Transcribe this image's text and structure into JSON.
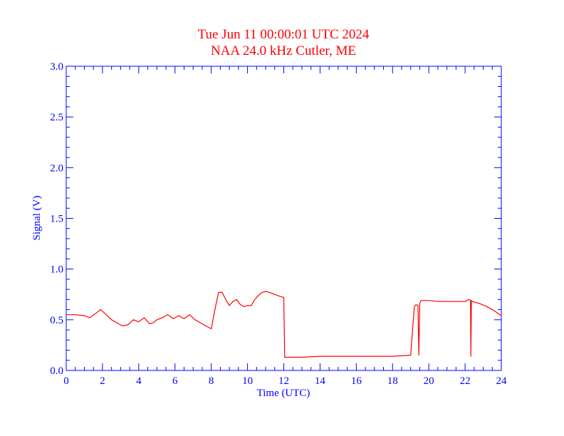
{
  "chart_data": {
    "type": "line",
    "title": "Tue Jun 11 00:00:01 UTC 2024",
    "subtitle": "NAA 24.0 kHz Cutler, ME",
    "xlabel": "Time (UTC)",
    "ylabel": "Signal (V)",
    "xlim": [
      0,
      24
    ],
    "ylim": [
      0,
      3.0
    ],
    "x_ticks": [
      "0",
      "2",
      "4",
      "6",
      "8",
      "10",
      "12",
      "14",
      "16",
      "18",
      "20",
      "22",
      "24"
    ],
    "y_ticks": [
      "0.0",
      "0.5",
      "1.0",
      "1.5",
      "2.0",
      "2.5",
      "3.0"
    ],
    "grid": false,
    "series": [
      {
        "x": [
          0,
          0.5,
          1.0,
          1.3,
          1.6,
          1.9,
          2.2,
          2.5,
          2.8,
          3.1,
          3.4,
          3.7,
          4.0,
          4.3,
          4.6,
          4.8,
          5.0,
          5.3,
          5.6,
          5.9,
          6.2,
          6.5,
          6.8,
          7.1,
          7.4,
          7.7,
          8.0,
          8.2,
          8.4,
          8.6,
          8.8,
          9.0,
          9.2,
          9.4,
          9.6,
          9.8,
          10.0,
          10.2,
          10.4,
          10.6,
          10.8,
          11.0,
          11.2,
          11.5,
          11.8,
          12.0,
          12.05,
          12.1,
          12.5,
          13.0,
          14.0,
          15.0,
          16.0,
          17.0,
          18.0,
          19.0,
          19.2,
          19.3,
          19.4,
          19.45,
          19.5,
          19.55,
          19.6,
          19.7,
          20.0,
          20.5,
          21.0,
          21.5,
          22.0,
          22.2,
          22.3,
          22.32,
          22.35,
          22.4,
          22.8,
          23.2,
          23.6,
          24.0
        ],
        "y": [
          0.55,
          0.55,
          0.54,
          0.52,
          0.56,
          0.6,
          0.55,
          0.5,
          0.47,
          0.44,
          0.45,
          0.5,
          0.48,
          0.52,
          0.46,
          0.47,
          0.5,
          0.52,
          0.55,
          0.51,
          0.54,
          0.51,
          0.55,
          0.5,
          0.47,
          0.44,
          0.41,
          0.6,
          0.77,
          0.77,
          0.7,
          0.64,
          0.68,
          0.7,
          0.65,
          0.63,
          0.64,
          0.64,
          0.7,
          0.74,
          0.77,
          0.78,
          0.77,
          0.75,
          0.73,
          0.72,
          0.13,
          0.13,
          0.13,
          0.13,
          0.14,
          0.14,
          0.14,
          0.14,
          0.14,
          0.15,
          0.63,
          0.65,
          0.64,
          0.15,
          0.66,
          0.68,
          0.69,
          0.69,
          0.69,
          0.68,
          0.68,
          0.68,
          0.68,
          0.7,
          0.69,
          0.14,
          0.69,
          0.68,
          0.66,
          0.63,
          0.59,
          0.54
        ]
      }
    ]
  },
  "colors": {
    "title": "#ff0000",
    "axes": "#0000ff",
    "series": "#ff0000"
  }
}
